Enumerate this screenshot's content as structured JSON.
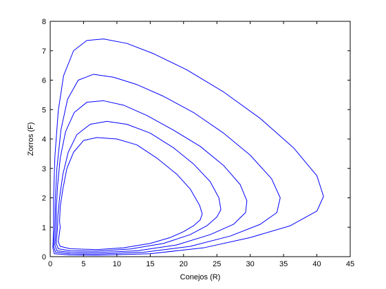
{
  "chart_data": {
    "type": "line",
    "title": "",
    "xlabel": "Conejos (R)",
    "ylabel": "Zorros (F)",
    "xlim": [
      0,
      45
    ],
    "ylim": [
      0,
      8
    ],
    "xticks": [
      0,
      5,
      10,
      15,
      20,
      25,
      30,
      35,
      40,
      45
    ],
    "yticks": [
      0,
      1,
      2,
      3,
      4,
      5,
      6,
      7,
      8
    ],
    "grid": false,
    "legend": "none",
    "line_color": "#0000ff",
    "series": [
      {
        "x": [
          1.5,
          1.2,
          1.5,
          3,
          7,
          11,
          15,
          18,
          20,
          21.5,
          22.5,
          22.8,
          22.4,
          21,
          19,
          16,
          13,
          10,
          7,
          5,
          3.5,
          2.5,
          1.9,
          1.5,
          1.4,
          1.5
        ],
        "y": [
          1.0,
          0.5,
          0.35,
          0.27,
          0.24,
          0.3,
          0.45,
          0.65,
          0.85,
          1.05,
          1.25,
          1.45,
          1.75,
          2.3,
          2.8,
          3.35,
          3.8,
          4.0,
          4.05,
          3.95,
          3.55,
          3.0,
          2.3,
          1.7,
          1.2,
          1.0
        ]
      },
      {
        "x": [
          1.1,
          0.9,
          1.2,
          3,
          7,
          12,
          17,
          21,
          23.5,
          25,
          25.6,
          25.3,
          24,
          21.5,
          18.5,
          15,
          11.5,
          8.5,
          6,
          4,
          2.7,
          1.9,
          1.4,
          1.15,
          1.1
        ],
        "y": [
          1.0,
          0.45,
          0.27,
          0.2,
          0.19,
          0.26,
          0.45,
          0.75,
          1.05,
          1.35,
          1.6,
          2.0,
          2.55,
          3.15,
          3.7,
          4.2,
          4.5,
          4.6,
          4.5,
          4.15,
          3.55,
          2.8,
          2.0,
          1.4,
          1.0
        ]
      },
      {
        "x": [
          0.9,
          0.7,
          1.0,
          3,
          7,
          13,
          19,
          24,
          27.5,
          29.3,
          29.5,
          28.5,
          26,
          22.5,
          18.5,
          14.5,
          11,
          8,
          5.5,
          3.6,
          2.3,
          1.5,
          1.1,
          0.9,
          0.9
        ],
        "y": [
          1.0,
          0.4,
          0.2,
          0.15,
          0.14,
          0.2,
          0.4,
          0.75,
          1.1,
          1.5,
          1.9,
          2.45,
          3.1,
          3.75,
          4.3,
          4.8,
          5.15,
          5.3,
          5.25,
          4.9,
          4.25,
          3.35,
          2.4,
          1.6,
          1.0
        ]
      },
      {
        "x": [
          0.7,
          0.5,
          0.8,
          3,
          7,
          14,
          21,
          27,
          31.5,
          34,
          34.5,
          33.2,
          30,
          26,
          21.5,
          17,
          13,
          9.5,
          6.5,
          4.2,
          2.6,
          1.6,
          1.0,
          0.75,
          0.7
        ],
        "y": [
          1.0,
          0.35,
          0.15,
          0.1,
          0.09,
          0.15,
          0.35,
          0.7,
          1.1,
          1.5,
          2.0,
          2.65,
          3.45,
          4.2,
          4.9,
          5.45,
          5.85,
          6.1,
          6.2,
          6.0,
          5.35,
          4.3,
          3.0,
          1.9,
          1.0
        ]
      },
      {
        "x": [
          0.5,
          0.4,
          0.6,
          3,
          7,
          15,
          23,
          30,
          36,
          40,
          41,
          40,
          36.5,
          31.5,
          26,
          20.5,
          15.5,
          11.5,
          8,
          5.5,
          3.5,
          2,
          1.2,
          0.7,
          0.5,
          0.5
        ],
        "y": [
          1.0,
          0.3,
          0.1,
          0.06,
          0.05,
          0.1,
          0.3,
          0.65,
          1.05,
          1.55,
          2.05,
          2.75,
          3.7,
          4.7,
          5.6,
          6.35,
          6.9,
          7.25,
          7.4,
          7.35,
          7.0,
          6.15,
          4.95,
          3.4,
          2.0,
          1.0
        ]
      }
    ]
  }
}
